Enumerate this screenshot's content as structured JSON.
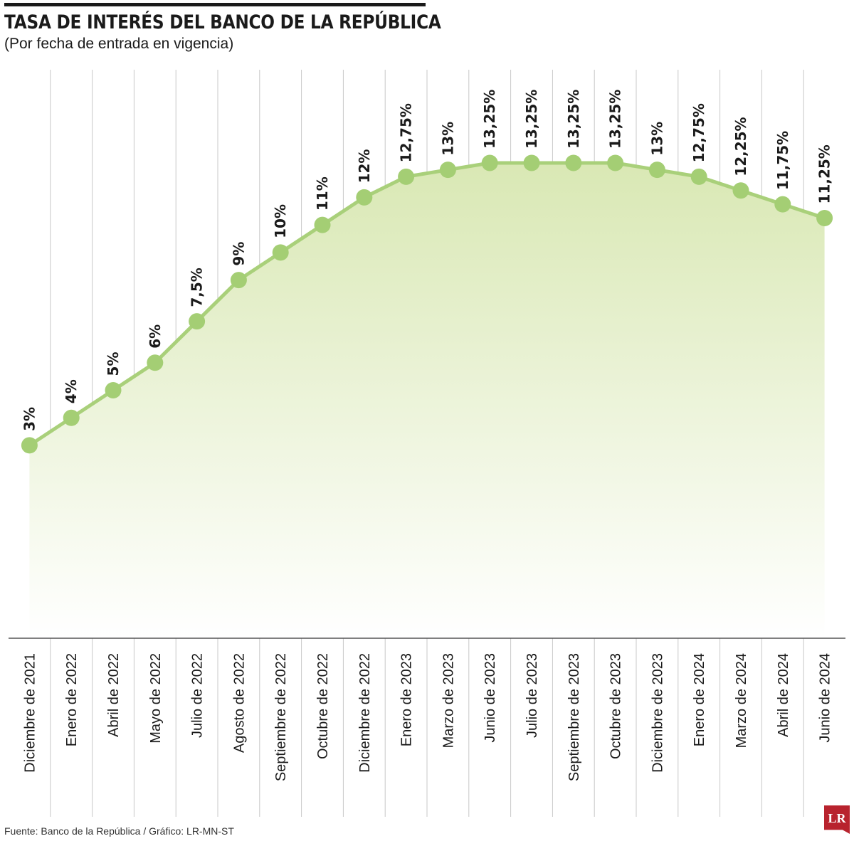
{
  "header": {
    "title": "TASA DE INTERÉS DEL BANCO DE LA REPÚBLICA",
    "subtitle": "(Por fecha de entrada en vigencia)"
  },
  "footer": {
    "source": "Fuente: Banco de la República / Gráfico: LR-MN-ST",
    "logo_text": "LR"
  },
  "colors": {
    "line": "#a9d07a",
    "point": "#a4ce74",
    "area_top": "#d9e8b4",
    "area_bottom": "#ffffff",
    "grid": "#c8c8c8",
    "axis": "#555555",
    "logo": "#b8232e"
  },
  "chart_data": {
    "type": "line",
    "title": "TASA DE INTERÉS DEL BANCO DE LA REPÚBLICA",
    "subtitle": "(Por fecha de entrada en vigencia)",
    "categories": [
      "Diciembre de 2021",
      "Enero de 2022",
      "Abril de 2022",
      "Mayo de 2022",
      "Julio de 2022",
      "Agosto de 2022",
      "Septiembre de 2022",
      "Octubre de 2022",
      "Diciembre de 2022",
      "Enero de 2023",
      "Marzo de 2023",
      "Junio de 2023",
      "Julio de 2023",
      "Septiembre de 2023",
      "Octubre de 2023",
      "Diciembre de 2023",
      "Enero de 2024",
      "Marzo de 2024",
      "Abril de 2024",
      "Junio de 2024"
    ],
    "values": [
      3,
      4,
      5,
      6,
      7.5,
      9,
      10,
      11,
      12,
      12.75,
      13,
      13.25,
      13.25,
      13.25,
      13.25,
      13,
      12.75,
      12.25,
      11.75,
      11.25
    ],
    "data_labels": [
      "3%",
      "4%",
      "5%",
      "6%",
      "7,5%",
      "9%",
      "10%",
      "11%",
      "12%",
      "12,75%",
      "13%",
      "13,25%",
      "13,25%",
      "13,25%",
      "13,25%",
      "13%",
      "12,75%",
      "12,25%",
      "11,75%",
      "11,25%"
    ],
    "ylim": [
      -4,
      13.25
    ],
    "grid": true,
    "area_fill": true,
    "legend": "none"
  }
}
